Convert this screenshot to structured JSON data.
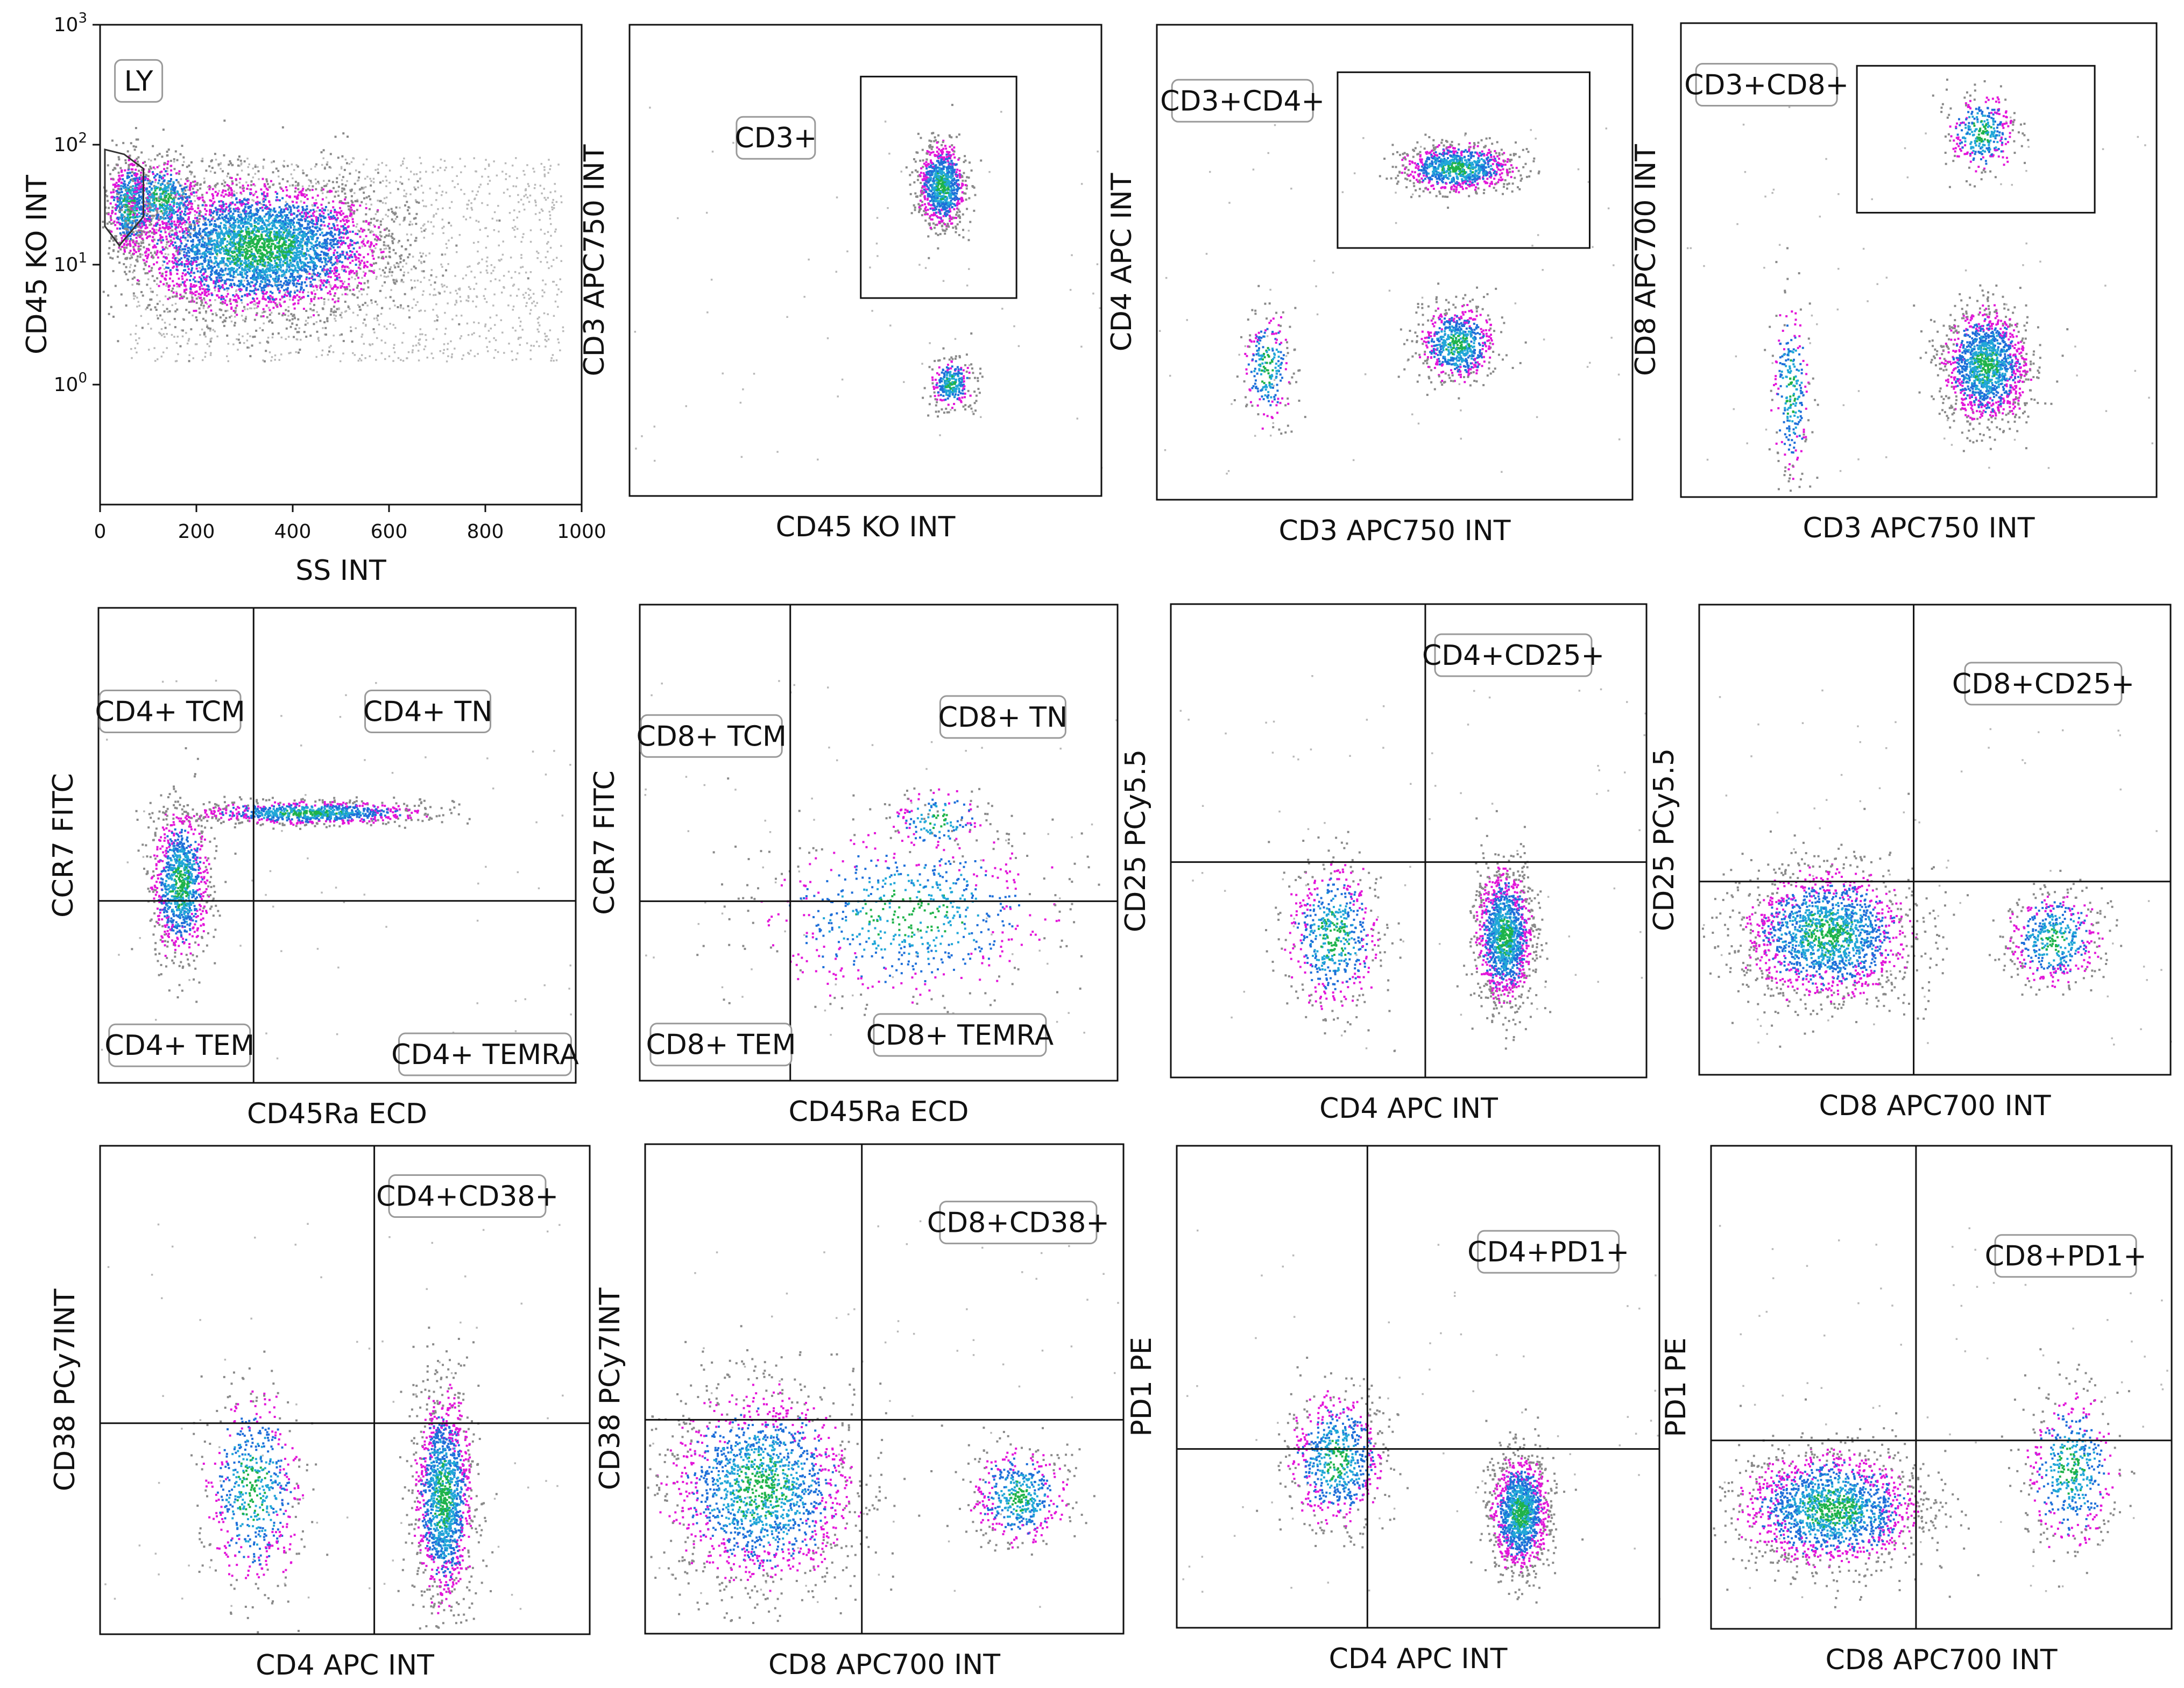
{
  "chart_data": [
    {
      "type": "scatter",
      "xlabel": "SS INT",
      "ylabel": "CD45 KO INT",
      "x_ticks": [
        "0",
        "200",
        "400",
        "600",
        "800",
        "1000"
      ],
      "y_ticks": [
        "10^0",
        "10^1",
        "10^2",
        "10^3"
      ],
      "xlim": [
        0,
        1000
      ],
      "ylim_log10": [
        -1,
        3
      ],
      "gates": [
        {
          "label": "LY",
          "kind": "polygon"
        }
      ],
      "clusters": [
        {
          "x": 330,
          "y_log10": 1.15,
          "n": 4000
        },
        {
          "x": 60,
          "y_log10": 1.5,
          "n": 600
        },
        {
          "x": 130,
          "y_log10": 1.55,
          "n": 500
        }
      ]
    },
    {
      "type": "scatter",
      "xlabel": "CD45 KO INT",
      "ylabel": "CD3 APC750 INT",
      "gates": [
        {
          "label": "CD3+",
          "kind": "rectangle"
        }
      ],
      "clusters": [
        {
          "x": 0.66,
          "y": 0.66,
          "n": 900
        },
        {
          "x": 0.68,
          "y": 0.24,
          "n": 300
        }
      ]
    },
    {
      "type": "scatter",
      "xlabel": "CD3 APC750 INT",
      "ylabel": "CD4 APC INT",
      "gates": [
        {
          "label": "CD3+CD4+",
          "kind": "rectangle"
        }
      ],
      "clusters": [
        {
          "x": 0.63,
          "y": 0.7,
          "n": 900
        },
        {
          "x": 0.63,
          "y": 0.33,
          "n": 700
        },
        {
          "x": 0.23,
          "y": 0.28,
          "n": 250
        }
      ]
    },
    {
      "type": "scatter",
      "xlabel": "CD3 APC750 INT",
      "ylabel": "CD8 APC700 INT",
      "gates": [
        {
          "label": "CD3+CD8+",
          "kind": "rectangle"
        }
      ],
      "clusters": [
        {
          "x": 0.63,
          "y": 0.77,
          "n": 350
        },
        {
          "x": 0.64,
          "y": 0.28,
          "n": 1400
        },
        {
          "x": 0.23,
          "y": 0.23,
          "n": 250
        }
      ]
    },
    {
      "type": "scatter",
      "xlabel": "CD45Ra ECD",
      "ylabel": "CCR7 FITC",
      "quadrants": [
        {
          "label": "CD4+ TCM",
          "pos": "upper-left"
        },
        {
          "label": "CD4+ TN",
          "pos": "upper-right"
        },
        {
          "label": "CD4+ TEM",
          "pos": "lower-left"
        },
        {
          "label": "CD4+ TEMRA",
          "pos": "lower-right"
        }
      ],
      "clusters": [
        {
          "x": 0.44,
          "y": 0.57,
          "n": 900
        },
        {
          "x": 0.17,
          "y": 0.42,
          "n": 1000
        }
      ]
    },
    {
      "type": "scatter",
      "xlabel": "CD45Ra ECD",
      "ylabel": "CCR7 FITC",
      "quadrants": [
        {
          "label": "CD8+ TCM",
          "pos": "upper-left"
        },
        {
          "label": "CD8+ TN",
          "pos": "upper-right"
        },
        {
          "label": "CD8+ TEM",
          "pos": "lower-left"
        },
        {
          "label": "CD8+ TEMRA",
          "pos": "lower-right"
        }
      ],
      "clusters": [
        {
          "x": 0.56,
          "y": 0.35,
          "n": 700
        },
        {
          "x": 0.62,
          "y": 0.55,
          "n": 150
        }
      ]
    },
    {
      "type": "scatter",
      "xlabel": "CD4 APC INT",
      "ylabel": "CD25 PCy5.5",
      "quadrants": [
        {
          "label": "CD4+CD25+",
          "pos": "upper-right"
        }
      ],
      "clusters": [
        {
          "x": 0.7,
          "y": 0.3,
          "n": 1400
        },
        {
          "x": 0.34,
          "y": 0.3,
          "n": 600
        }
      ]
    },
    {
      "type": "scatter",
      "xlabel": "CD8 APC700 INT",
      "ylabel": "CD25 PCy5.5",
      "quadrants": [
        {
          "label": "CD8+CD25+",
          "pos": "upper-right"
        }
      ],
      "clusters": [
        {
          "x": 0.27,
          "y": 0.3,
          "n": 1800
        },
        {
          "x": 0.75,
          "y": 0.29,
          "n": 500
        }
      ]
    },
    {
      "type": "scatter",
      "xlabel": "CD4 APC INT",
      "ylabel": "CD38 PCy7INT",
      "quadrants": [
        {
          "label": "CD4+CD38+",
          "pos": "upper-right"
        }
      ],
      "clusters": [
        {
          "x": 0.7,
          "y": 0.28,
          "n": 1500
        },
        {
          "x": 0.31,
          "y": 0.3,
          "n": 600
        }
      ]
    },
    {
      "type": "scatter",
      "xlabel": "CD8 APC700 INT",
      "ylabel": "CD38 PCy7INT",
      "quadrants": [
        {
          "label": "CD8+CD38+",
          "pos": "upper-right"
        }
      ],
      "clusters": [
        {
          "x": 0.24,
          "y": 0.3,
          "n": 1800
        },
        {
          "x": 0.78,
          "y": 0.28,
          "n": 500
        }
      ]
    },
    {
      "type": "scatter",
      "xlabel": "CD4 APC INT",
      "ylabel": "PD1 PE",
      "quadrants": [
        {
          "label": "CD4+PD1+",
          "pos": "upper-right"
        }
      ],
      "clusters": [
        {
          "x": 0.71,
          "y": 0.24,
          "n": 1300
        },
        {
          "x": 0.33,
          "y": 0.35,
          "n": 700
        }
      ]
    },
    {
      "type": "scatter",
      "xlabel": "CD8 APC700 INT",
      "ylabel": "PD1 PE",
      "quadrants": [
        {
          "label": "CD8+PD1+",
          "pos": "upper-right"
        }
      ],
      "clusters": [
        {
          "x": 0.26,
          "y": 0.25,
          "n": 1800
        },
        {
          "x": 0.78,
          "y": 0.33,
          "n": 500
        }
      ]
    }
  ]
}
